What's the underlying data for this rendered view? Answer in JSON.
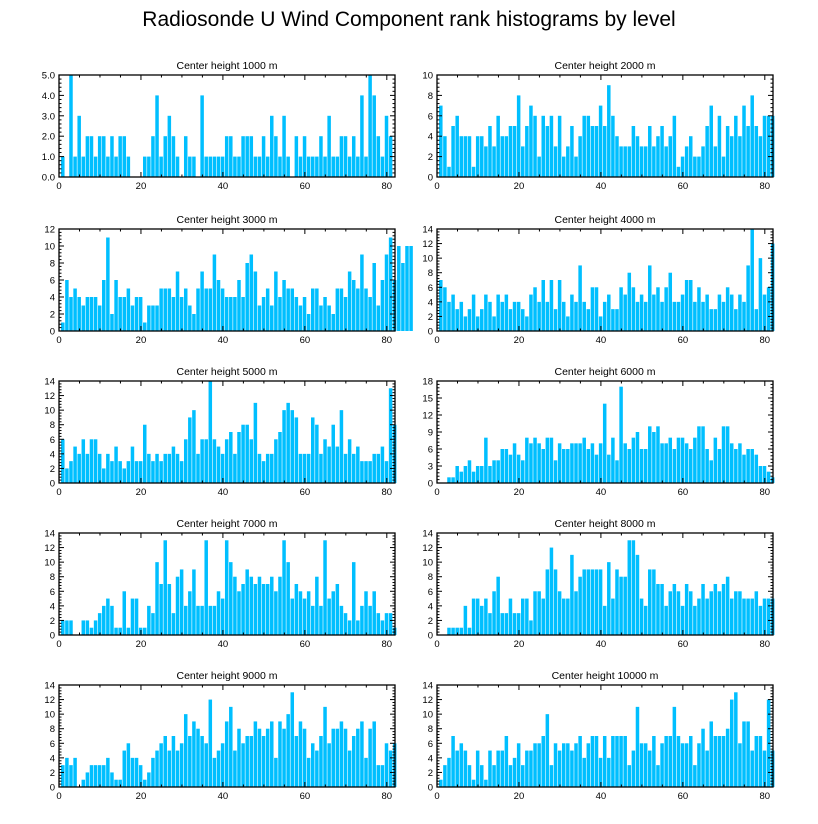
{
  "title": "Radiosonde U Wind Component rank histograms by level",
  "colors": {
    "bar": "#00bfff",
    "axis": "#000000",
    "background": "#ffffff"
  },
  "chart_data": [
    {
      "type": "bar",
      "title": "Center height 1000 m",
      "xlim": [
        0,
        82
      ],
      "ylim": [
        0,
        5
      ],
      "xticks": [
        0,
        20,
        40,
        60,
        80
      ],
      "yticks": [
        0,
        1,
        2,
        3,
        4,
        5
      ],
      "ytick_labels": [
        "0.0",
        "1.0",
        "2.0",
        "3.0",
        "4.0",
        "5.0"
      ],
      "values": [
        1,
        0,
        5,
        1,
        3,
        1,
        2,
        2,
        1,
        2,
        2,
        1,
        2,
        1,
        2,
        2,
        1,
        0,
        0,
        0,
        1,
        1,
        2,
        4,
        1,
        2,
        3,
        2,
        1,
        0,
        2,
        1,
        1,
        0,
        4,
        1,
        1,
        1,
        1,
        1,
        2,
        2,
        1,
        1,
        2,
        2,
        2,
        1,
        1,
        2,
        1,
        3,
        2,
        1,
        3,
        1,
        0,
        2,
        1,
        2,
        1,
        1,
        1,
        2,
        1,
        3,
        1,
        1,
        2,
        2,
        1,
        2,
        1,
        4,
        1,
        5,
        4,
        2,
        1,
        3,
        2
      ]
    },
    {
      "type": "bar",
      "title": "Center height 2000 m",
      "xlim": [
        0,
        82
      ],
      "ylim": [
        0,
        10
      ],
      "xticks": [
        0,
        20,
        40,
        60,
        80
      ],
      "yticks": [
        0,
        2,
        4,
        6,
        8,
        10
      ],
      "ytick_labels": [
        "0",
        "2",
        "4",
        "6",
        "8",
        "10"
      ],
      "values": [
        7,
        4,
        1,
        5,
        6,
        4,
        4,
        4,
        1,
        4,
        4,
        3,
        5,
        3,
        6,
        4,
        4,
        5,
        5,
        8,
        3,
        5,
        7,
        6,
        2,
        6,
        5,
        6,
        3,
        6,
        2,
        3,
        5,
        2,
        4,
        6,
        6,
        5,
        5,
        7,
        5,
        9,
        6,
        4,
        3,
        3,
        3,
        5,
        4,
        3,
        3,
        5,
        3,
        4,
        5,
        3,
        4,
        6,
        1,
        2,
        3,
        4,
        2,
        2,
        3,
        5,
        7,
        3,
        6,
        2,
        5,
        4,
        6,
        4,
        7,
        5,
        8,
        5,
        4,
        6,
        6,
        6
      ]
    },
    {
      "type": "bar",
      "title": "Center height 3000 m",
      "xlim": [
        0,
        82
      ],
      "ylim": [
        0,
        12
      ],
      "xticks": [
        0,
        20,
        40,
        60,
        80
      ],
      "yticks": [
        0,
        2,
        4,
        6,
        8,
        10,
        12
      ],
      "ytick_labels": [
        "0",
        "2",
        "4",
        "6",
        "8",
        "10",
        "12"
      ],
      "values": [
        1,
        6,
        4,
        5,
        4,
        3,
        4,
        4,
        4,
        3,
        6,
        11,
        2,
        6,
        4,
        4,
        5,
        3,
        4,
        4,
        1,
        3,
        3,
        3,
        5,
        5,
        5,
        4,
        7,
        4,
        5,
        3,
        2,
        5,
        7,
        5,
        5,
        9,
        6,
        5,
        4,
        4,
        4,
        6,
        4,
        8,
        9,
        7,
        3,
        4,
        5,
        3,
        7,
        4,
        6,
        5,
        5,
        4,
        3,
        4,
        2,
        5,
        5,
        3,
        4,
        3,
        2,
        5,
        5,
        4,
        7,
        6,
        5,
        9,
        5,
        4,
        8,
        3,
        6,
        9,
        11,
        6,
        10,
        8,
        10,
        10
      ]
    },
    {
      "type": "bar",
      "title": "Center height 4000 m",
      "xlim": [
        0,
        82
      ],
      "ylim": [
        0,
        14
      ],
      "xticks": [
        0,
        20,
        40,
        60,
        80
      ],
      "yticks": [
        0,
        2,
        4,
        6,
        8,
        10,
        12,
        14
      ],
      "ytick_labels": [
        "0",
        "2",
        "4",
        "6",
        "8",
        "10",
        "12",
        "14"
      ],
      "values": [
        7,
        6,
        4,
        5,
        3,
        4,
        2,
        3,
        5,
        2,
        3,
        5,
        4,
        2,
        5,
        4,
        5,
        3,
        4,
        4,
        3,
        2,
        5,
        6,
        4,
        7,
        4,
        7,
        3,
        7,
        4,
        2,
        5,
        4,
        9,
        4,
        3,
        6,
        6,
        2,
        4,
        5,
        3,
        3,
        6,
        5,
        8,
        6,
        4,
        5,
        4,
        9,
        5,
        6,
        4,
        6,
        8,
        4,
        4,
        5,
        7,
        7,
        4,
        6,
        4,
        5,
        3,
        3,
        5,
        4,
        6,
        5,
        3,
        5,
        4,
        9,
        14,
        3,
        10,
        5,
        6,
        12
      ]
    },
    {
      "type": "bar",
      "title": "Center height 5000 m",
      "xlim": [
        0,
        82
      ],
      "ylim": [
        0,
        14
      ],
      "xticks": [
        0,
        20,
        40,
        60,
        80
      ],
      "yticks": [
        0,
        2,
        4,
        6,
        8,
        10,
        12,
        14
      ],
      "ytick_labels": [
        "0",
        "2",
        "4",
        "6",
        "8",
        "10",
        "12",
        "14"
      ],
      "values": [
        6,
        2,
        3,
        5,
        4,
        6,
        4,
        6,
        6,
        4,
        2,
        4,
        3,
        5,
        3,
        2,
        3,
        5,
        3,
        3,
        8,
        4,
        3,
        4,
        3,
        4,
        4,
        5,
        4,
        3,
        6,
        9,
        10,
        4,
        6,
        6,
        14,
        6,
        5,
        4,
        6,
        7,
        4,
        7,
        8,
        8,
        6,
        11,
        4,
        3,
        4,
        4,
        6,
        7,
        10,
        11,
        10,
        9,
        4,
        4,
        4,
        9,
        8,
        4,
        6,
        5,
        8,
        5,
        10,
        4,
        6,
        4,
        5,
        3,
        3,
        3,
        4,
        4,
        5,
        3,
        13,
        8
      ]
    },
    {
      "type": "bar",
      "title": "Center height 6000 m",
      "xlim": [
        0,
        82
      ],
      "ylim": [
        0,
        18
      ],
      "xticks": [
        0,
        20,
        40,
        60,
        80
      ],
      "yticks": [
        0,
        3,
        6,
        9,
        12,
        15,
        18
      ],
      "ytick_labels": [
        "0",
        "3",
        "6",
        "9",
        "12",
        "15",
        "18"
      ],
      "values": [
        0,
        0,
        1,
        1,
        3,
        2,
        3,
        4,
        2,
        3,
        3,
        8,
        3,
        4,
        4,
        6,
        6,
        5,
        7,
        5,
        4,
        8,
        7,
        8,
        7,
        6,
        8,
        8,
        4,
        7,
        6,
        6,
        7,
        7,
        7,
        8,
        6,
        7,
        5,
        7,
        14,
        5,
        8,
        4,
        17,
        7,
        6,
        8,
        9,
        6,
        6,
        10,
        9,
        10,
        7,
        7,
        8,
        6,
        8,
        8,
        7,
        6,
        8,
        10,
        10,
        6,
        4,
        8,
        6,
        10,
        10,
        7,
        6,
        7,
        5,
        6,
        6,
        5,
        3,
        3,
        2,
        1
      ]
    },
    {
      "type": "bar",
      "title": "Center height 7000 m",
      "xlim": [
        0,
        82
      ],
      "ylim": [
        0,
        14
      ],
      "xticks": [
        0,
        20,
        40,
        60,
        80
      ],
      "yticks": [
        0,
        2,
        4,
        6,
        8,
        10,
        12,
        14
      ],
      "ytick_labels": [
        "0",
        "2",
        "4",
        "6",
        "8",
        "10",
        "12",
        "14"
      ],
      "values": [
        2,
        2,
        2,
        0,
        0,
        2,
        2,
        1,
        2,
        3,
        4,
        5,
        4,
        1,
        1,
        6,
        1,
        5,
        5,
        1,
        1,
        4,
        3,
        10,
        7,
        13,
        7,
        3,
        8,
        9,
        4,
        6,
        9,
        4,
        4,
        13,
        4,
        4,
        6,
        5,
        13,
        10,
        8,
        6,
        7,
        9,
        8,
        7,
        8,
        7,
        7,
        8,
        6,
        8,
        13,
        10,
        5,
        7,
        6,
        5,
        6,
        4,
        8,
        4,
        13,
        5,
        6,
        7,
        4,
        3,
        2,
        10,
        2,
        4,
        6,
        4,
        6,
        3,
        2,
        3,
        3,
        1
      ]
    },
    {
      "type": "bar",
      "title": "Center height 8000 m",
      "xlim": [
        0,
        82
      ],
      "ylim": [
        0,
        14
      ],
      "xticks": [
        0,
        20,
        40,
        60,
        80
      ],
      "yticks": [
        0,
        2,
        4,
        6,
        8,
        10,
        12,
        14
      ],
      "ytick_labels": [
        "0",
        "2",
        "4",
        "6",
        "8",
        "10",
        "12",
        "14"
      ],
      "values": [
        0,
        0,
        1,
        1,
        1,
        1,
        4,
        1,
        5,
        5,
        4,
        5,
        3,
        6,
        8,
        3,
        3,
        5,
        3,
        3,
        5,
        5,
        2,
        6,
        6,
        5,
        9,
        12,
        9,
        6,
        5,
        5,
        11,
        6,
        8,
        9,
        9,
        9,
        9,
        9,
        4,
        10,
        5,
        9,
        8,
        8,
        13,
        13,
        11,
        5,
        4,
        9,
        9,
        7,
        7,
        4,
        6,
        7,
        6,
        4,
        7,
        6,
        4,
        5,
        7,
        5,
        6,
        7,
        6,
        7,
        8,
        5,
        6,
        6,
        5,
        5,
        5,
        6,
        4,
        5,
        5,
        5
      ]
    },
    {
      "type": "bar",
      "title": "Center height 9000 m",
      "xlim": [
        0,
        82
      ],
      "ylim": [
        0,
        14
      ],
      "xticks": [
        0,
        20,
        40,
        60,
        80
      ],
      "yticks": [
        0,
        2,
        4,
        6,
        8,
        10,
        12,
        14
      ],
      "ytick_labels": [
        "0",
        "2",
        "4",
        "6",
        "8",
        "10",
        "12",
        "14"
      ],
      "values": [
        3,
        4,
        3,
        4,
        0,
        1,
        2,
        3,
        3,
        3,
        3,
        4,
        2,
        1,
        1,
        5,
        6,
        4,
        4,
        3,
        1,
        2,
        4,
        5,
        6,
        7,
        5,
        7,
        5,
        6,
        10,
        7,
        9,
        8,
        7,
        6,
        12,
        4,
        5,
        6,
        9,
        11,
        5,
        8,
        6,
        7,
        7,
        9,
        8,
        7,
        8,
        9,
        4,
        9,
        8,
        10,
        13,
        7,
        9,
        8,
        4,
        6,
        5,
        7,
        11,
        6,
        8,
        8,
        9,
        8,
        5,
        7,
        8,
        9,
        4,
        8,
        9,
        3,
        3,
        6,
        5,
        6
      ]
    },
    {
      "type": "bar",
      "title": "Center height 10000 m",
      "xlim": [
        0,
        82
      ],
      "ylim": [
        0,
        14
      ],
      "xticks": [
        0,
        20,
        40,
        60,
        80
      ],
      "yticks": [
        0,
        2,
        4,
        6,
        8,
        10,
        12,
        14
      ],
      "ytick_labels": [
        "0",
        "2",
        "4",
        "6",
        "8",
        "10",
        "12",
        "14"
      ],
      "values": [
        1,
        3,
        4,
        7,
        5,
        6,
        5,
        3,
        1,
        5,
        3,
        1,
        5,
        3,
        5,
        5,
        7,
        3,
        4,
        6,
        3,
        5,
        5,
        6,
        6,
        7,
        10,
        3,
        6,
        5,
        6,
        6,
        5,
        6,
        7,
        4,
        6,
        7,
        7,
        4,
        7,
        4,
        7,
        7,
        7,
        7,
        3,
        5,
        11,
        6,
        6,
        5,
        7,
        3,
        6,
        7,
        7,
        11,
        7,
        6,
        6,
        7,
        3,
        6,
        8,
        5,
        9,
        7,
        7,
        7,
        8,
        12,
        13,
        6,
        9,
        9,
        5,
        7,
        7,
        5,
        12,
        5
      ]
    }
  ]
}
